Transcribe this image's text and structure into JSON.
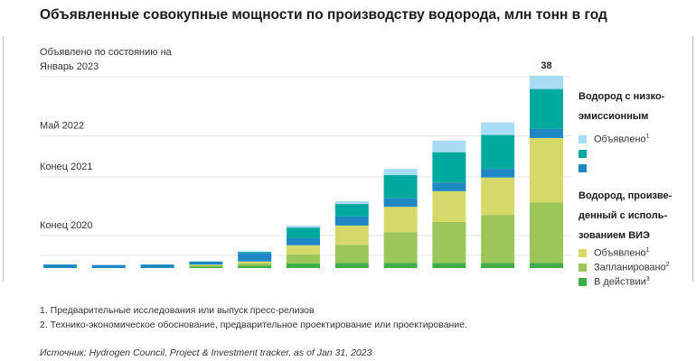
{
  "title": "Объявленные совокупные мощности по производству водорода, млн тонн в год",
  "chart_data": {
    "type": "bar",
    "stacked": true,
    "title": "Объявленные совокупные мощности по производству водорода, млн тонн в год",
    "categories": [
      "",
      "",
      "",
      "",
      "",
      "",
      "",
      "",
      "",
      "",
      ""
    ],
    "series": [
      {
        "key": "ren_operational",
        "color": "#3fae49",
        "values": [
          0,
          0,
          0,
          0.3,
          0.5,
          0.9,
          1,
          1,
          1,
          1,
          1
        ]
      },
      {
        "key": "ren_planned",
        "color": "#9cc65a",
        "values": [
          0,
          0,
          0,
          0.3,
          0.4,
          1.8,
          3.6,
          6.1,
          8.1,
          9.5,
          12
        ]
      },
      {
        "key": "ren_announced",
        "color": "#d4d96a",
        "values": [
          0,
          0,
          0,
          0.1,
          0.4,
          1.8,
          3.8,
          5,
          6.1,
          7.4,
          12.7
        ]
      },
      {
        "key": "low_blue",
        "color": "#1f87c4",
        "values": [
          0.7,
          0.6,
          0.7,
          0.6,
          1.7,
          1.4,
          1.8,
          1.7,
          1.7,
          1.7,
          1.8
        ]
      },
      {
        "key": "low_teal",
        "color": "#00a99d",
        "values": [
          0,
          0,
          0,
          0,
          0.2,
          2.1,
          2.5,
          4.6,
          6,
          6.7,
          7.9
        ]
      },
      {
        "key": "low_announced",
        "color": "#a8dcf5",
        "values": [
          0,
          0,
          0,
          0,
          0.1,
          0.4,
          0.5,
          1.2,
          2.3,
          2.5,
          2.6
        ]
      }
    ],
    "data_labels": [
      {
        "index": 10,
        "text": "38"
      }
    ],
    "ylim": [
      0,
      38
    ],
    "reference_lines": [
      {
        "value": 38,
        "label_line1": "Объявлено по состоянию на",
        "label_line2": "Январь 2023"
      },
      {
        "value": 26.3,
        "label_line1": "Май 2022",
        "label_line2": ""
      },
      {
        "value": 18.2,
        "label_line1": "Конец 2021",
        "label_line2": ""
      },
      {
        "value": 6.6,
        "label_line1": "Конец 2020",
        "label_line2": ""
      },
      {
        "value": 2.7,
        "label_line1": "",
        "label_line2": ""
      }
    ],
    "legend_placement": "right",
    "grid": false
  },
  "legend": {
    "group1_title": "Водород с низко-эмиссионным",
    "group1_items": [
      {
        "label": "Объявлено",
        "sup": "1",
        "color": "#a8dcf5"
      },
      {
        "label": "",
        "sup": "",
        "color": "#00a99d"
      },
      {
        "label": "",
        "sup": "",
        "color": "#1f87c4"
      }
    ],
    "group2_title": "Водород, произве-денный с исполь-зованием ВИЭ",
    "group2_items": [
      {
        "label": "Объявлено",
        "sup": "1",
        "color": "#d4d96a"
      },
      {
        "label": "Запланировано",
        "sup": "2",
        "color": "#9cc65a"
      },
      {
        "label": "В действии",
        "sup": "3",
        "color": "#3fae49"
      }
    ]
  },
  "notes": [
    "1. Предварительные исследования или выпуск пресс-релизов",
    "2. Технико-экономическое обоснование, предварительное проектирование или проектирование."
  ],
  "source": "Источник: Hydrogen Council, Project & Investment tracker, as of Jan 31, 2023"
}
